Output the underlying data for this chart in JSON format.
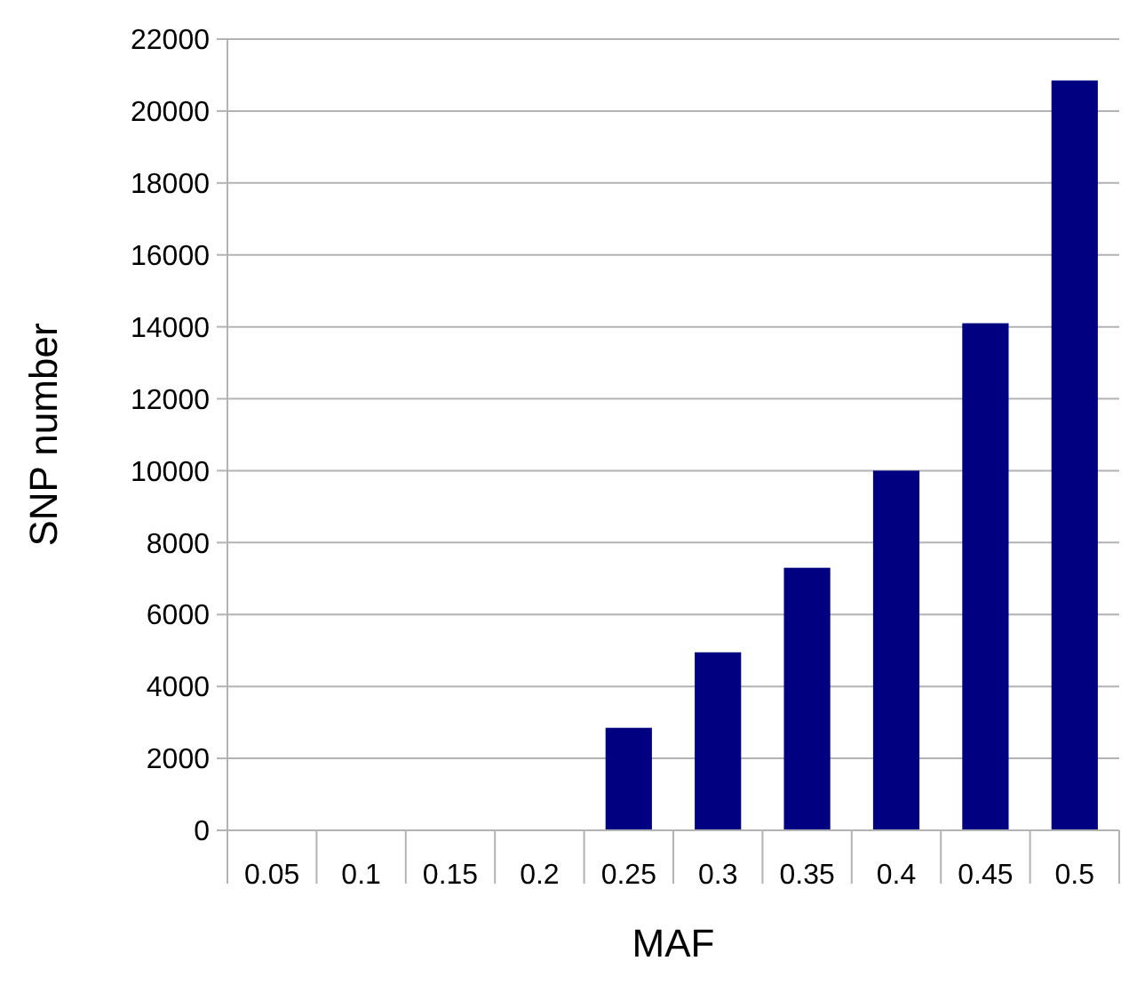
{
  "chart_data": {
    "type": "bar",
    "xlabel": "MAF",
    "ylabel": "SNP number",
    "categories": [
      "0.05",
      "0.1",
      "0.15",
      "0.2",
      "0.25",
      "0.3",
      "0.35",
      "0.4",
      "0.45",
      "0.5"
    ],
    "values": [
      0,
      0,
      0,
      0,
      2850,
      4950,
      7300,
      10000,
      14100,
      20850
    ],
    "color": "#000080",
    "ylim": [
      0,
      22000
    ],
    "yticks": [
      0,
      2000,
      4000,
      6000,
      8000,
      10000,
      12000,
      14000,
      16000,
      18000,
      20000,
      22000
    ],
    "grid": "y"
  }
}
